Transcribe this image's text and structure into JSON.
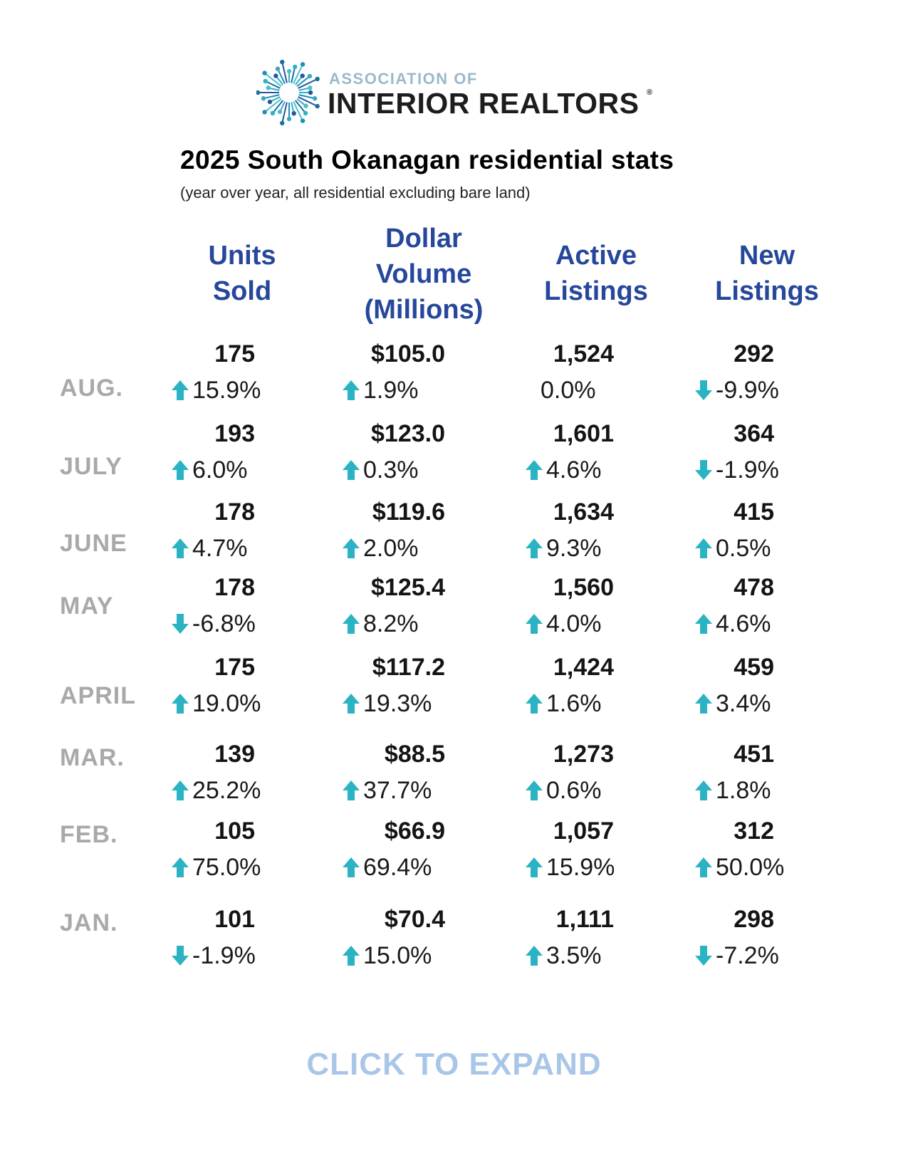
{
  "logo": {
    "top_text": "ASSOCIATION OF",
    "main_text": "INTERIOR REALTORS",
    "registered_mark": "®"
  },
  "title": "2025 South Okanagan residential stats",
  "subtitle": "(year over year, all residential excluding bare land)",
  "columns": [
    {
      "label": "Units\nSold"
    },
    {
      "label": "Dollar\nVolume\n(Millions)"
    },
    {
      "label": "Active\nListings"
    },
    {
      "label": "New\nListings"
    }
  ],
  "rows": [
    {
      "month": "AUG.",
      "cells": [
        {
          "value": "175",
          "change": "15.9%",
          "dir": "up"
        },
        {
          "value": "$105.0",
          "change": "1.9%",
          "dir": "up"
        },
        {
          "value": "1,524",
          "change": "0.0%",
          "dir": "none"
        },
        {
          "value": "292",
          "change": "-9.9%",
          "dir": "down"
        }
      ]
    },
    {
      "month": "JULY",
      "cells": [
        {
          "value": "193",
          "change": "6.0%",
          "dir": "up"
        },
        {
          "value": "$123.0",
          "change": "0.3%",
          "dir": "up"
        },
        {
          "value": "1,601",
          "change": "4.6%",
          "dir": "up"
        },
        {
          "value": "364",
          "change": "-1.9%",
          "dir": "down"
        }
      ]
    },
    {
      "month": "JUNE",
      "cells": [
        {
          "value": "178",
          "change": "4.7%",
          "dir": "up"
        },
        {
          "value": "$119.6",
          "change": "2.0%",
          "dir": "up"
        },
        {
          "value": "1,634",
          "change": "9.3%",
          "dir": "up"
        },
        {
          "value": "415",
          "change": "0.5%",
          "dir": "up"
        }
      ]
    },
    {
      "month": "MAY",
      "cells": [
        {
          "value": "178",
          "change": "-6.8%",
          "dir": "down"
        },
        {
          "value": "$125.4",
          "change": "8.2%",
          "dir": "up"
        },
        {
          "value": "1,560",
          "change": "4.0%",
          "dir": "up"
        },
        {
          "value": "478",
          "change": "4.6%",
          "dir": "up"
        }
      ]
    },
    {
      "month": "APRIL",
      "cells": [
        {
          "value": "175",
          "change": "19.0%",
          "dir": "up"
        },
        {
          "value": "$117.2",
          "change": "19.3%",
          "dir": "up"
        },
        {
          "value": "1,424",
          "change": "1.6%",
          "dir": "up"
        },
        {
          "value": "459",
          "change": "3.4%",
          "dir": "up"
        }
      ]
    },
    {
      "month": "MAR.",
      "cells": [
        {
          "value": "139",
          "change": "25.2%",
          "dir": "up"
        },
        {
          "value": "$88.5",
          "change": "37.7%",
          "dir": "up"
        },
        {
          "value": "1,273",
          "change": "0.6%",
          "dir": "up"
        },
        {
          "value": "451",
          "change": "1.8%",
          "dir": "up"
        }
      ]
    },
    {
      "month": "FEB.",
      "cells": [
        {
          "value": "105",
          "change": "75.0%",
          "dir": "up"
        },
        {
          "value": "$66.9",
          "change": "69.4%",
          "dir": "up"
        },
        {
          "value": "1,057",
          "change": "15.9%",
          "dir": "up"
        },
        {
          "value": "312",
          "change": "50.0%",
          "dir": "up"
        }
      ]
    },
    {
      "month": "JAN.",
      "cells": [
        {
          "value": "101",
          "change": "-1.9%",
          "dir": "down"
        },
        {
          "value": "$70.4",
          "change": "15.0%",
          "dir": "up"
        },
        {
          "value": "1,111",
          "change": "3.5%",
          "dir": "up"
        },
        {
          "value": "298",
          "change": "-7.2%",
          "dir": "down"
        }
      ]
    }
  ],
  "expand_label": "CLICK TO EXPAND",
  "colors": {
    "arrow": "#2bb3c4",
    "heading": "#26479c",
    "month": "#a9a9a9",
    "expand": "#a9c6e8"
  }
}
